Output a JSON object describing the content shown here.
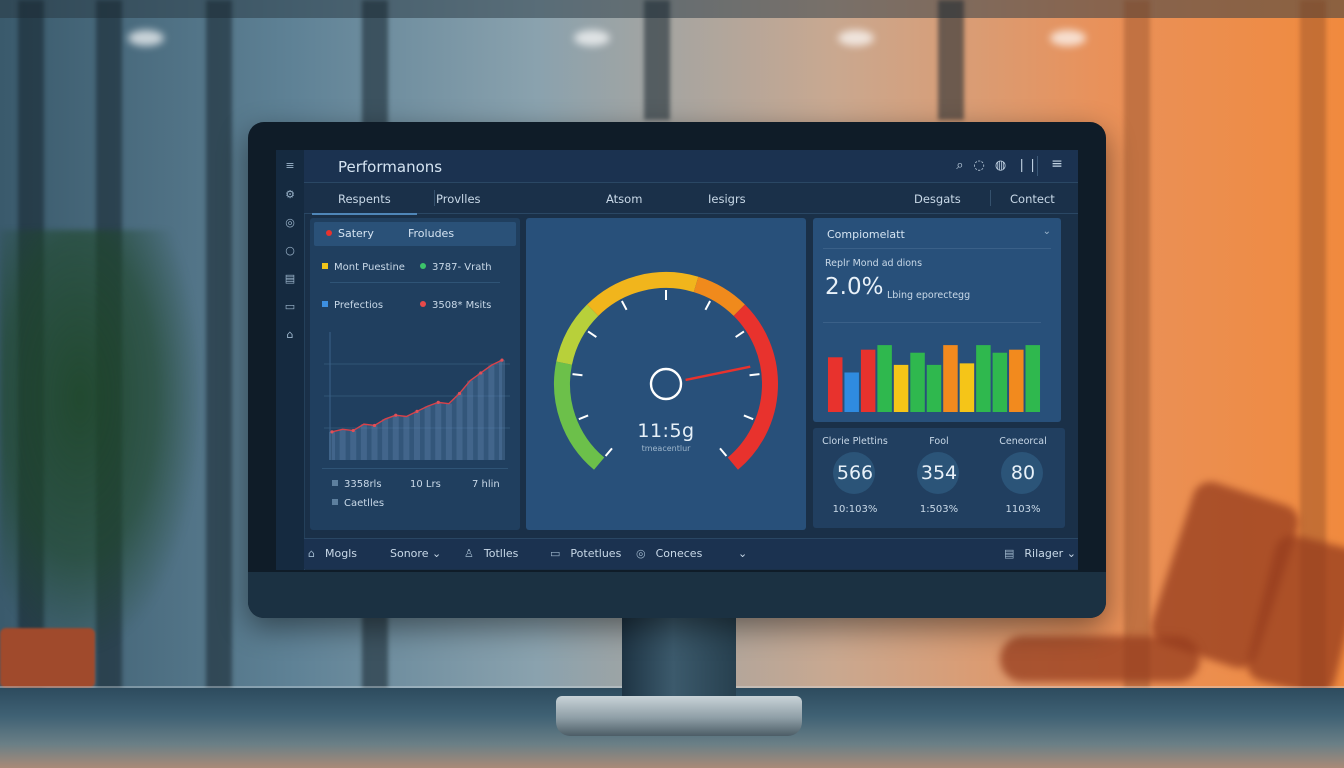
{
  "header": {
    "title": "Performanons",
    "icons": [
      "search-icon",
      "refresh-icon",
      "chat-icon",
      "pause-icon",
      "menu-icon"
    ]
  },
  "rail": {
    "icons": [
      "menu-icon",
      "settings-icon",
      "globe-icon",
      "circle-icon",
      "calendar-icon",
      "folder-icon",
      "user-icon"
    ]
  },
  "tabs": [
    {
      "label": "Respents",
      "active": true
    },
    {
      "label": "Provlles"
    },
    {
      "label": "Atsom"
    },
    {
      "label": "Iesigrs"
    },
    {
      "label": "Desgats"
    },
    {
      "label": "Contect"
    }
  ],
  "left_panel": {
    "mini_tabs": [
      "Satery",
      "Froludes"
    ],
    "legend": [
      {
        "label": "Mont Puestine",
        "color": "#f0c419"
      },
      {
        "label": "3787- Vrath",
        "color": "#3cc46a"
      },
      {
        "label": "Prefectios",
        "color": "#3d8fe0"
      },
      {
        "label": "3508* Msits",
        "color": "#e84a4a"
      }
    ],
    "area_values": [
      0.22,
      0.24,
      0.23,
      0.28,
      0.27,
      0.32,
      0.35,
      0.34,
      0.38,
      0.42,
      0.45,
      0.44,
      0.52,
      0.62,
      0.68,
      0.74,
      0.78
    ],
    "footer": [
      "3358rls",
      "10 Lrs",
      "7 hlin",
      "Caetlles"
    ]
  },
  "gauge": {
    "value_text": "11:5g",
    "caption": "tmeacentlur",
    "level": 0.78
  },
  "right_top": {
    "title": "Compiomelatt",
    "metric_label": "Replr Mond ad dions",
    "big_value": "2.0%",
    "desc": "Lbing eporectegg",
    "bars": [
      {
        "v": 0.72,
        "c": "#e8322d"
      },
      {
        "v": 0.52,
        "c": "#2f8be0"
      },
      {
        "v": 0.82,
        "c": "#e8322d"
      },
      {
        "v": 0.88,
        "c": "#2fb84e"
      },
      {
        "v": 0.62,
        "c": "#f5c518"
      },
      {
        "v": 0.78,
        "c": "#2fb84e"
      },
      {
        "v": 0.62,
        "c": "#2fb84e"
      },
      {
        "v": 0.88,
        "c": "#f28a1e"
      },
      {
        "v": 0.64,
        "c": "#f5c518"
      },
      {
        "v": 0.88,
        "c": "#2fb84e"
      },
      {
        "v": 0.78,
        "c": "#2fb84e"
      },
      {
        "v": 0.82,
        "c": "#f28a1e"
      },
      {
        "v": 0.88,
        "c": "#2fb84e"
      }
    ]
  },
  "stats": [
    {
      "label": "Clorie Plettins",
      "value": "566",
      "pct": "10:103%"
    },
    {
      "label": "Fool",
      "value": "354",
      "pct": "1:503%"
    },
    {
      "label": "Ceneorcal",
      "value": "80",
      "pct": "1103%"
    }
  ],
  "bottom": {
    "items": [
      {
        "label": "Mogls",
        "icon": "home-icon"
      },
      {
        "label": "Sonore",
        "icon": "chevron-down-icon"
      },
      {
        "label": "Totlles",
        "icon": "user-icon"
      },
      {
        "label": "Potetlues",
        "icon": "calendar-icon"
      },
      {
        "label": "Coneces",
        "icon": "settings-icon"
      },
      {
        "label": "Rilager",
        "icon": "folder-icon"
      }
    ]
  }
}
